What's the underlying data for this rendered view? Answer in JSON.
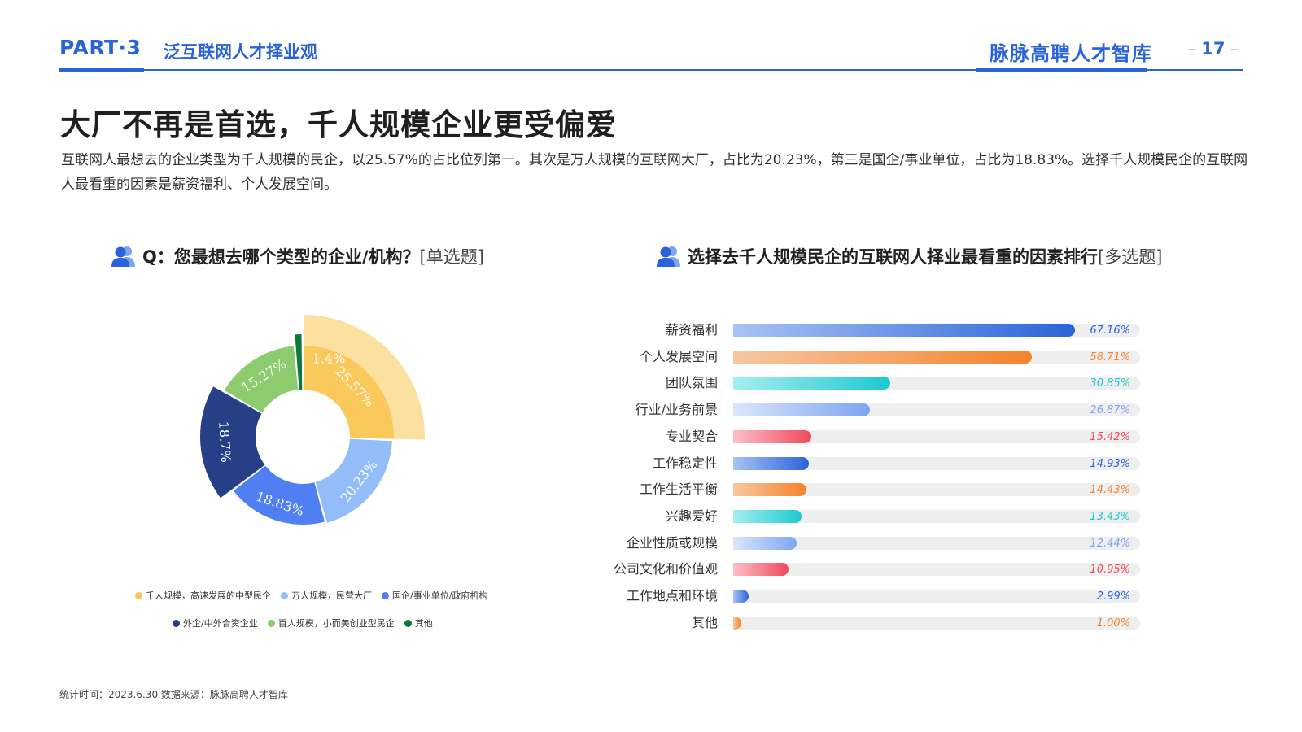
{
  "header": {
    "part": "PART·3",
    "section": "泛互联网人才择业观",
    "brand": "脉脉高聘人才智库",
    "page_number": "17"
  },
  "title": "大厂不再是首选，千人规模企业更受偏爱",
  "description": "互联网人最想去的企业类型为千人规模的民企，以25.57%的占比位列第一。其次是万人规模的互联网大厂，占比为20.23%，第三是国企/事业单位，占比为18.83%。选择千人规模民企的互联网人最看重的因素是薪资福利、个人发展空间。",
  "left_chart_title": {
    "main": "Q：您最想去哪个类型的企业/机构？",
    "suffix": "[单选题]"
  },
  "right_chart_title": {
    "main": "选择去千人规模民企的互联网人择业最看重的因素排行",
    "suffix": "[多选题]"
  },
  "chart_data": [
    {
      "type": "pie",
      "categories": [
        "千人规模，高速发展的中型民企",
        "万人规模，民营大厂",
        "国企/事业单位/政府机构",
        "外企/中外合资企业",
        "百人规模，小而美创业型民企",
        "其他"
      ],
      "values": [
        25.57,
        20.23,
        18.83,
        18.7,
        15.27,
        1.4
      ],
      "labels": [
        "25.57%",
        "20.23%",
        "18.83%",
        "18.7%",
        "15.27%",
        "1.4%"
      ],
      "colors": [
        "#f9c95b",
        "#92bdf8",
        "#4f7ff2",
        "#263f86",
        "#8ccb6e",
        "#0e7a3a"
      ],
      "highlight_color": "#fbe0a0"
    },
    {
      "type": "bar",
      "orientation": "horizontal",
      "categories": [
        "薪资福利",
        "个人发展空间",
        "团队氛围",
        "行业/业务前景",
        "专业契合",
        "工作稳定性",
        "工作生活平衡",
        "兴趣爱好",
        "企业性质或规模",
        "公司文化和价值观",
        "工作地点和环境",
        "其他"
      ],
      "values": [
        67.16,
        58.71,
        30.85,
        26.87,
        15.42,
        14.93,
        14.43,
        13.43,
        12.44,
        10.95,
        2.99,
        1.0
      ],
      "labels": [
        "67.16%",
        "58.71%",
        "30.85%",
        "26.87%",
        "15.42%",
        "14.93%",
        "14.43%",
        "13.43%",
        "12.44%",
        "10.95%",
        "2.99%",
        "1.00%"
      ],
      "xlim": [
        0,
        80
      ],
      "palette": [
        {
          "from": "#a8c3f5",
          "to": "#2a63d9",
          "text": "#2a63d9"
        },
        {
          "from": "#f6c7a2",
          "to": "#f5822a",
          "text": "#f5822a"
        },
        {
          "from": "#a6eef0",
          "to": "#1cc9cf",
          "text": "#1cc9cf"
        },
        {
          "from": "#dbe6fb",
          "to": "#7ea5f2",
          "text": "#7ea5f2"
        },
        {
          "from": "#fbc0c8",
          "to": "#f0495c",
          "text": "#f0495c"
        }
      ]
    }
  ],
  "footer": "统计时间：2023.6.30  数据来源：脉脉高聘人才智库"
}
